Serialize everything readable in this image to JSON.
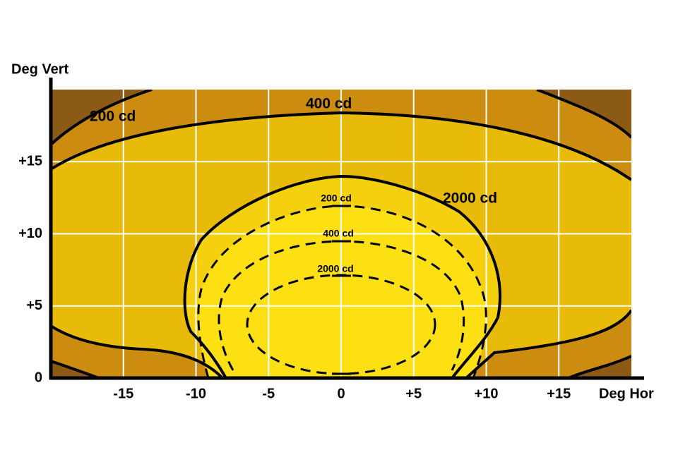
{
  "chart_data": {
    "type": "contour",
    "x_label": "Deg Hor",
    "y_label": "Deg Vert",
    "xlim": [
      -20,
      20
    ],
    "xticks": [
      -15,
      -10,
      -5,
      0,
      {
        "value": 5,
        "label": "+5"
      },
      {
        "value": 10,
        "label": "+10"
      },
      {
        "value": 15,
        "label": "+15"
      }
    ],
    "ylim": [
      0,
      20
    ],
    "yticks": [
      0,
      {
        "value": 5,
        "label": "+5"
      },
      {
        "value": 10,
        "label": "+10"
      },
      {
        "value": 15,
        "label": "+15"
      }
    ],
    "grid": true,
    "annotations": [
      "200 cd",
      "400 cd",
      "2000 cd",
      "200 cd",
      "400 cd",
      "2000 cd"
    ]
  }
}
